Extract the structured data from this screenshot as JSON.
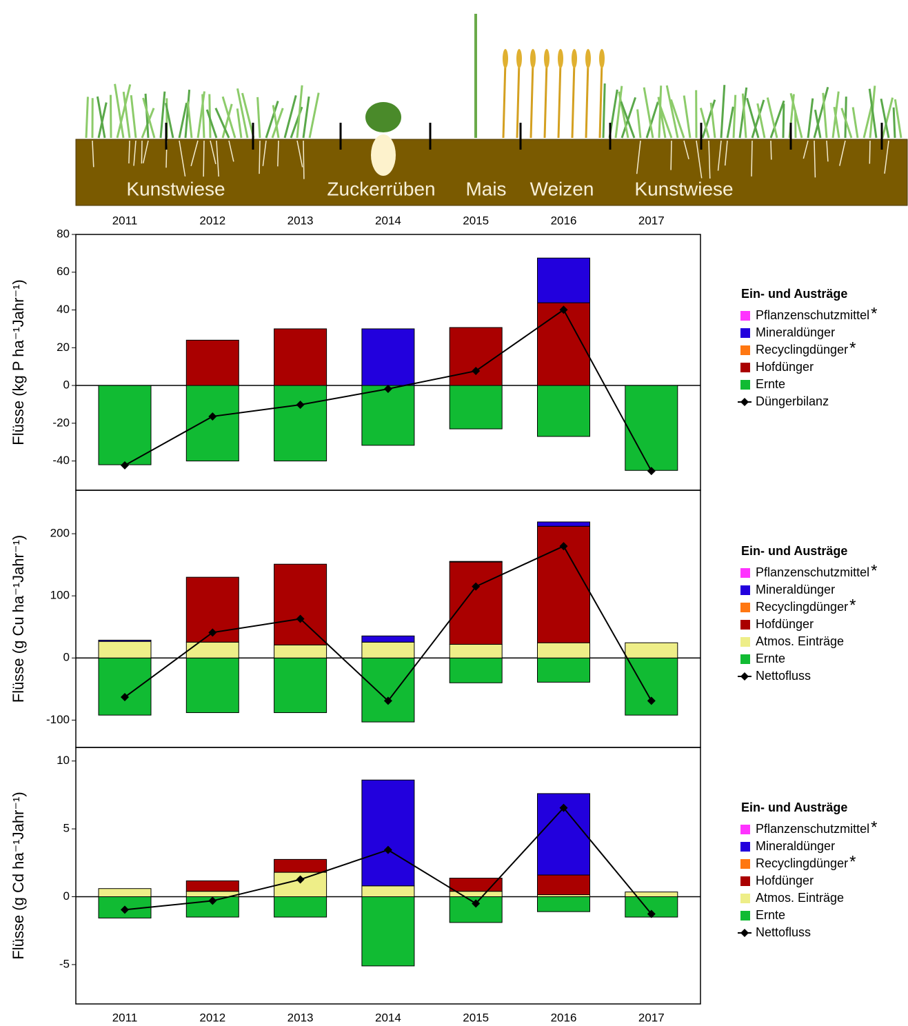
{
  "header": {
    "crops": [
      "Kunstwiese",
      "Zuckerrüben",
      "Mais",
      "Weizen",
      "Kunstwiese"
    ]
  },
  "chart_data": [
    {
      "type": "bar",
      "stacked": true,
      "ylabel": "Flüsse (kg P ha⁻¹Jahr⁻¹)",
      "categories": [
        "2011",
        "2012",
        "2013",
        "2014",
        "2015",
        "2016",
        "2017"
      ],
      "ylim": [
        -55.5,
        80
      ],
      "yticks": [
        -40,
        -20,
        0,
        20,
        40,
        60,
        80
      ],
      "legend_title": "Ein- und Austräge",
      "series": [
        {
          "name": "Pflanzenschutzmittel",
          "note": "*",
          "color": "#ff33ff",
          "values": [
            0,
            0,
            0,
            0,
            0,
            0,
            0
          ]
        },
        {
          "name": "Mineraldünger",
          "color": "#2200dd",
          "values": [
            0,
            0,
            0,
            30,
            0,
            23.7,
            0
          ]
        },
        {
          "name": "Recyclingdünger",
          "note": "*",
          "color": "#ff7711",
          "values": [
            0,
            0,
            0,
            0,
            0,
            0,
            0
          ]
        },
        {
          "name": "Hofdünger",
          "color": "#aa0000",
          "values": [
            0,
            24,
            30,
            0,
            30.7,
            43.8,
            0
          ]
        },
        {
          "name": "Ernte",
          "color": "#11bb33",
          "values": [
            -42,
            -40,
            -40,
            -31.7,
            -23,
            -27,
            -45
          ]
        },
        {
          "name": "Düngerbilanz",
          "type": "line",
          "color": "#000000",
          "values": [
            -42.3,
            -16.4,
            -10.2,
            -1.8,
            7.7,
            40.1,
            -45.3
          ]
        }
      ]
    },
    {
      "type": "bar",
      "stacked": true,
      "ylabel": "Flüsse (g Cu ha⁻¹Jahr⁻¹)",
      "categories": [
        null,
        null,
        null,
        null,
        null,
        null,
        null
      ],
      "ylim": [
        -144,
        270
      ],
      "yticks": [
        -100,
        0,
        100,
        200
      ],
      "legend_title": "Ein- und Austräge",
      "series": [
        {
          "name": "Pflanzenschutzmittel",
          "note": "*",
          "color": "#ff33ff",
          "values": [
            0,
            0,
            0,
            0,
            0,
            0,
            0
          ]
        },
        {
          "name": "Mineraldünger",
          "color": "#2200dd",
          "values": [
            2,
            0,
            0,
            10,
            1,
            7,
            0
          ]
        },
        {
          "name": "Recyclingdünger",
          "note": "*",
          "color": "#ff7711",
          "values": [
            0,
            0,
            0,
            0,
            0,
            0,
            0
          ]
        },
        {
          "name": "Hofdünger",
          "color": "#aa0000",
          "values": [
            0,
            104.5,
            130,
            0,
            132.5,
            187.5,
            0
          ]
        },
        {
          "name": "Atmos. Einträge",
          "color": "#eeee88",
          "values": [
            26.7,
            25.5,
            21,
            25.5,
            22,
            24.5,
            24.5
          ]
        },
        {
          "name": "Ernte",
          "color": "#11bb33",
          "values": [
            -92,
            -88,
            -88,
            -103,
            -40,
            -39,
            -92
          ]
        },
        {
          "name": "Nettofluss",
          "type": "line",
          "color": "#000000",
          "values": [
            -63,
            41,
            63,
            -69,
            115,
            180,
            -69
          ]
        }
      ]
    },
    {
      "type": "bar",
      "stacked": true,
      "ylabel": "Flüsse (g Cd ha⁻¹Jahr⁻¹)",
      "categories": [
        "2011",
        "2012",
        "2013",
        "2014",
        "2015",
        "2016",
        "2017"
      ],
      "ylim": [
        -7.9,
        11
      ],
      "yticks": [
        -5,
        0,
        5,
        10
      ],
      "legend_title": "Ein- und Austräge",
      "series": [
        {
          "name": "Pflanzenschutzmittel",
          "note": "*",
          "color": "#ff33ff",
          "values": [
            0,
            0,
            0,
            0,
            0,
            0,
            0
          ]
        },
        {
          "name": "Mineraldünger",
          "color": "#2200dd",
          "values": [
            0,
            0,
            0,
            7.8,
            0,
            6.0,
            0
          ]
        },
        {
          "name": "Recyclingdünger",
          "note": "*",
          "color": "#ff7711",
          "values": [
            0,
            0,
            0,
            0,
            0,
            0,
            0
          ]
        },
        {
          "name": "Hofdünger",
          "color": "#aa0000",
          "values": [
            0,
            0.77,
            0.95,
            0,
            0.97,
            1.45,
            0
          ]
        },
        {
          "name": "Atmos. Einträge",
          "color": "#eeee88",
          "values": [
            0.6,
            0.4,
            1.8,
            0.8,
            0.4,
            0.15,
            0.35
          ]
        },
        {
          "name": "Ernte",
          "color": "#11bb33",
          "values": [
            -1.57,
            -1.5,
            -1.5,
            -5.1,
            -1.9,
            -1.1,
            -1.5
          ]
        },
        {
          "name": "Nettofluss",
          "type": "line",
          "color": "#000000",
          "values": [
            -0.96,
            -0.3,
            1.27,
            3.45,
            -0.5,
            6.55,
            -1.27
          ]
        }
      ]
    }
  ]
}
